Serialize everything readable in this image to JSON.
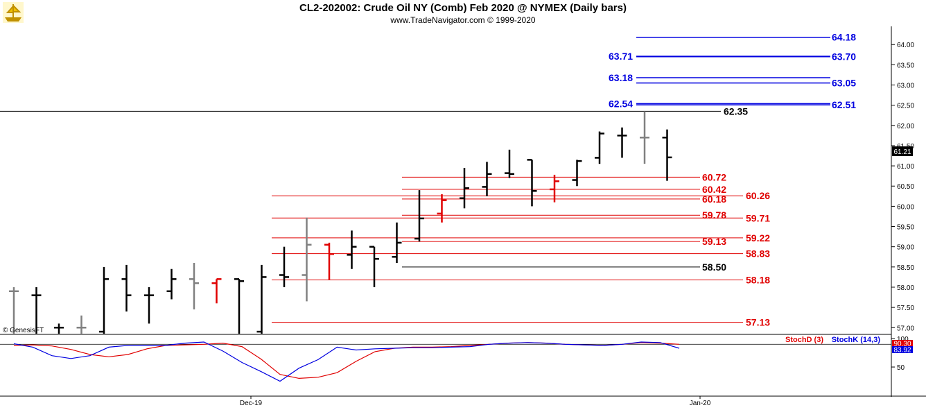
{
  "header": {
    "title": "CL2-202002:  Crude Oil NY (Comb) Feb 2020 @ NYMEX  (Daily bars)",
    "subtitle": "www.TradeNavigator.com © 1999-2020",
    "logo_icon": "ship-logo-icon"
  },
  "copyright": "© GenesisFT",
  "colors": {
    "up": "#000000",
    "down_gray": "#808080",
    "red": "#e00000",
    "blue": "#0000e0",
    "green": "#33cc33"
  },
  "chart_data": [
    {
      "type": "ohlc",
      "title": "CL2-202002:  Crude Oil NY (Comb) Feb 2020 @ NYMEX  (Daily bars)",
      "ylim": [
        56.85,
        64.45
      ],
      "y_ticks": [
        "57.00",
        "57.50",
        "58.00",
        "58.50",
        "59.00",
        "59.50",
        "60.00",
        "60.50",
        "61.00",
        "61.50",
        "62.00",
        "62.50",
        "63.00",
        "63.50",
        "64.00"
      ],
      "x_tick_labels": [
        "Dec-19",
        "Jan-20"
      ],
      "last_price": "61.21",
      "bars": [
        {
          "o": 57.9,
          "h": 58.0,
          "l": 56.7,
          "c": 57.9,
          "color": "gray"
        },
        {
          "o": 57.8,
          "h": 58.0,
          "l": 56.7,
          "c": 57.8,
          "color": "black"
        },
        {
          "o": 57.0,
          "h": 57.1,
          "l": 56.8,
          "c": 57.0,
          "color": "black"
        },
        {
          "o": 57.0,
          "h": 57.3,
          "l": 56.8,
          "c": 57.0,
          "color": "gray"
        },
        {
          "o": 56.9,
          "h": 58.5,
          "l": 56.8,
          "c": 58.2,
          "color": "black"
        },
        {
          "o": 58.2,
          "h": 58.55,
          "l": 57.4,
          "c": 57.8,
          "color": "black"
        },
        {
          "o": 57.8,
          "h": 58.0,
          "l": 57.1,
          "c": 57.8,
          "color": "black"
        },
        {
          "o": 57.9,
          "h": 58.45,
          "l": 57.7,
          "c": 58.2,
          "color": "black"
        },
        {
          "o": 58.2,
          "h": 58.6,
          "l": 57.45,
          "c": 58.1,
          "color": "gray"
        },
        {
          "o": 58.1,
          "h": 58.2,
          "l": 57.6,
          "c": 58.2,
          "color": "red"
        },
        {
          "o": 58.2,
          "h": 58.2,
          "l": 56.7,
          "c": 58.15,
          "color": "black"
        },
        {
          "o": 56.9,
          "h": 58.55,
          "l": 56.85,
          "c": 58.25,
          "color": "black"
        },
        {
          "o": 58.3,
          "h": 59.0,
          "l": 58.0,
          "c": 58.25,
          "color": "black"
        },
        {
          "o": 58.3,
          "h": 59.72,
          "l": 57.65,
          "c": 59.05,
          "color": "gray"
        },
        {
          "o": 59.05,
          "h": 59.1,
          "l": 58.18,
          "c": 58.82,
          "color": "red"
        },
        {
          "o": 58.8,
          "h": 59.4,
          "l": 58.45,
          "c": 59.0,
          "color": "black"
        },
        {
          "o": 59.0,
          "h": 59.0,
          "l": 58.0,
          "c": 58.7,
          "color": "black"
        },
        {
          "o": 58.75,
          "h": 59.6,
          "l": 58.6,
          "c": 59.1,
          "color": "black"
        },
        {
          "o": 59.2,
          "h": 60.4,
          "l": 59.13,
          "c": 59.7,
          "color": "black"
        },
        {
          "o": 59.82,
          "h": 60.3,
          "l": 59.6,
          "c": 60.15,
          "color": "red"
        },
        {
          "o": 60.2,
          "h": 60.95,
          "l": 59.95,
          "c": 60.45,
          "color": "black"
        },
        {
          "o": 60.48,
          "h": 61.1,
          "l": 60.25,
          "c": 60.8,
          "color": "black"
        },
        {
          "o": 60.82,
          "h": 61.4,
          "l": 60.7,
          "c": 60.8,
          "color": "black"
        },
        {
          "o": 61.15,
          "h": 61.15,
          "l": 60.0,
          "c": 60.38,
          "color": "black"
        },
        {
          "o": 60.42,
          "h": 60.78,
          "l": 60.1,
          "c": 60.62,
          "color": "red"
        },
        {
          "o": 60.65,
          "h": 61.15,
          "l": 60.5,
          "c": 61.12,
          "color": "black"
        },
        {
          "o": 61.2,
          "h": 61.85,
          "l": 61.05,
          "c": 61.8,
          "color": "black"
        },
        {
          "o": 61.75,
          "h": 61.95,
          "l": 61.2,
          "c": 61.75,
          "color": "black"
        },
        {
          "o": 61.7,
          "h": 62.35,
          "l": 61.05,
          "c": 61.7,
          "color": "gray"
        },
        {
          "o": 61.7,
          "h": 61.9,
          "l": 60.63,
          "c": 61.21,
          "color": "black"
        }
      ],
      "levels": [
        {
          "left": "62.54",
          "right": "62.51",
          "y1": 62.54,
          "y2": 62.51,
          "color": "blue"
        },
        {
          "left": "63.18",
          "right": "63.05",
          "y1": 63.18,
          "y2": 63.05,
          "color": "blue"
        },
        {
          "left": "63.71",
          "right": "63.70",
          "y1": 63.71,
          "y2": 63.7,
          "color": "blue"
        },
        {
          "left": "",
          "right": "64.18",
          "y1": 64.18,
          "y2": 64.18,
          "color": "blue"
        },
        {
          "left": "",
          "right": "62.35",
          "y1": 62.35,
          "y2": 62.35,
          "color": "black"
        },
        {
          "left": "",
          "right": "60.72",
          "y1": 60.72,
          "y2": 60.72,
          "color": "red"
        },
        {
          "left": "",
          "right": "60.42",
          "y1": 60.42,
          "y2": 60.42,
          "color": "red"
        },
        {
          "left": "60.18",
          "right": "60.26",
          "y1": 60.18,
          "y2": 60.26,
          "color": "red"
        },
        {
          "left": "59.78",
          "right": "59.71",
          "y1": 59.78,
          "y2": 59.71,
          "color": "red"
        },
        {
          "left": "59.13",
          "right": "59.22",
          "y1": 59.13,
          "y2": 59.22,
          "color": "red"
        },
        {
          "left": "",
          "right": "58.83",
          "y1": 58.83,
          "y2": 58.83,
          "color": "red"
        },
        {
          "left": "",
          "right": "58.50",
          "y1": 58.5,
          "y2": 58.5,
          "color": "black"
        },
        {
          "left": "",
          "right": "58.18",
          "y1": 58.18,
          "y2": 58.18,
          "color": "red"
        },
        {
          "left": "",
          "right": "57.13",
          "y1": 57.13,
          "y2": 57.13,
          "color": "red"
        }
      ]
    },
    {
      "type": "line",
      "ylim": [
        0,
        105
      ],
      "y_ticks": [
        "100",
        "50"
      ],
      "series": [
        {
          "name": "StochD (3)",
          "color": "red",
          "last": "90.30",
          "values": [
            88,
            89,
            87,
            81,
            72,
            68,
            72,
            82,
            88,
            89,
            90,
            92,
            86,
            64,
            37,
            30,
            32,
            40,
            60,
            77,
            83,
            85,
            85,
            86,
            88,
            90,
            92,
            93,
            92,
            90,
            89,
            88,
            90,
            93,
            92,
            90
          ]
        },
        {
          "name": "StochK (14,3)",
          "color": "blue",
          "last": "83.92",
          "values": [
            91,
            85,
            70,
            65,
            70,
            85,
            88,
            88,
            88,
            92,
            94,
            78,
            58,
            42,
            25,
            48,
            63,
            85,
            80,
            82,
            83,
            84,
            84,
            85,
            86,
            90,
            92,
            93,
            92,
            90,
            89,
            88,
            90,
            94,
            93,
            83
          ]
        }
      ]
    }
  ]
}
